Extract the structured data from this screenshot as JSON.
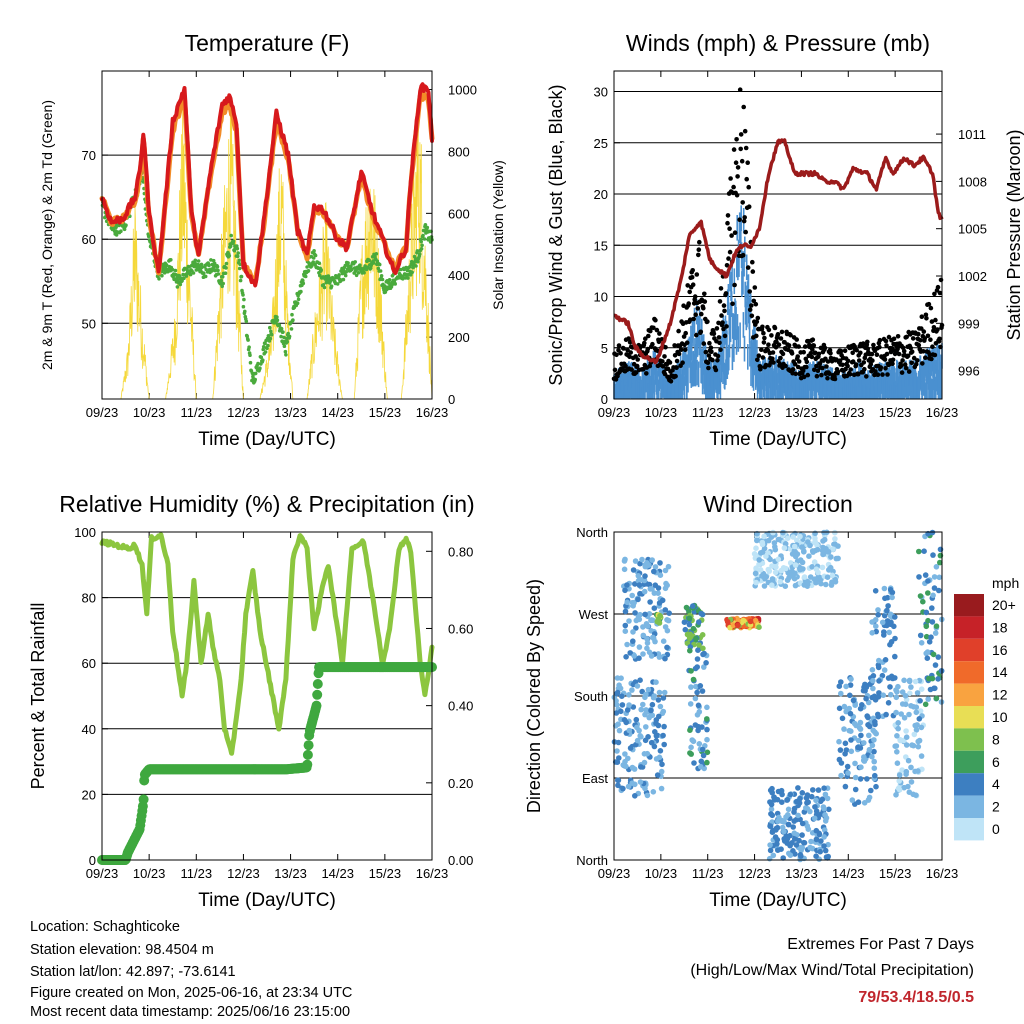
{
  "footer": {
    "location": "Location: Schaghticoke",
    "elevation": "Station elevation: 98.4504 m",
    "latlon": "Station lat/lon: 42.897; -73.6141",
    "created": "Figure created on Mon, 2025-06-16, at 23:34 UTC",
    "latest": "Most recent data timestamp: 2025/06/16 23:15:00"
  },
  "extremes": {
    "title": "Extremes For Past 7 Days",
    "subtitle": "(High/Low/Max Wind/Total Precipitation)",
    "values": "79/53.4/18.5/0.5"
  },
  "colors": {
    "temp_2m": "#d7191c",
    "temp_9m": "#f28c28",
    "dewpoint": "#4aaa3c",
    "solar": "#f5d83a",
    "gust": "#000000",
    "wind": "#4a90d0",
    "pressure": "#9b1b1b",
    "rh": "#8cc63f",
    "precip": "#3fa83f"
  },
  "chart_data": [
    {
      "type": "line",
      "title": "Temperature (F)",
      "xlabel": "Time (Day/UTC)",
      "ylabel": "2m & 9m T (Red, Orange) & 2m Td (Green)",
      "ylabel_right": "Solar Insolation (Yellow)",
      "x_ticks": [
        "09/23",
        "10/23",
        "11/23",
        "12/23",
        "13/23",
        "14/23",
        "15/23",
        "16/23"
      ],
      "xlim": [
        0,
        7
      ],
      "ylim": [
        41,
        80
      ],
      "yticks": [
        50,
        60,
        70
      ],
      "ylim_right": [
        0,
        1060
      ],
      "yticks_right": [
        0,
        200,
        400,
        600,
        800,
        1000
      ],
      "grid_y": true,
      "series": [
        {
          "key": "t2m",
          "x": [
            0,
            0.2,
            0.45,
            0.7,
            0.8,
            0.88,
            1.0,
            1.2,
            1.5,
            1.75,
            1.9,
            2.05,
            2.3,
            2.55,
            2.7,
            2.85,
            3.0,
            3.25,
            3.45,
            3.7,
            3.95,
            4.15,
            4.35,
            4.5,
            4.7,
            5.0,
            5.2,
            5.5,
            5.75,
            5.95,
            6.2,
            6.45,
            6.55,
            6.75,
            6.92,
            7.0
          ],
          "y": [
            65,
            62,
            62.5,
            65,
            68,
            73,
            63,
            56,
            74,
            78,
            63,
            58,
            68,
            76,
            77,
            74,
            57,
            54.5,
            63,
            75,
            70,
            61,
            58,
            64,
            63.5,
            60,
            59,
            68,
            63,
            60,
            56,
            59,
            67,
            78,
            78,
            72
          ]
        },
        {
          "key": "t9m",
          "x": [
            0,
            0.2,
            0.45,
            0.7,
            0.8,
            0.88,
            1.0,
            1.2,
            1.5,
            1.75,
            1.9,
            2.05,
            2.3,
            2.55,
            2.7,
            2.85,
            3.0,
            3.25,
            3.45,
            3.7,
            3.95,
            4.15,
            4.35,
            4.5,
            4.7,
            5.0,
            5.2,
            5.5,
            5.75,
            5.95,
            6.2,
            6.45,
            6.55,
            6.75,
            6.92,
            7.0
          ],
          "y": [
            65,
            62,
            62.5,
            64.5,
            67.5,
            72,
            62.5,
            56,
            73,
            77,
            62.5,
            58,
            67.5,
            75,
            76,
            73,
            57,
            54.8,
            62.5,
            74,
            69.5,
            61,
            58,
            63.5,
            63,
            60,
            59,
            67.5,
            62.5,
            60,
            56.5,
            59,
            66.5,
            77,
            77,
            72
          ]
        },
        {
          "key": "td",
          "x": [
            0,
            0.25,
            0.5,
            0.75,
            0.85,
            1.0,
            1.2,
            1.45,
            1.6,
            1.8,
            2.0,
            2.15,
            2.35,
            2.55,
            2.75,
            2.9,
            3.05,
            3.2,
            3.45,
            3.7,
            3.9,
            4.1,
            4.3,
            4.5,
            4.7,
            5.0,
            5.25,
            5.5,
            5.8,
            6.0,
            6.3,
            6.5,
            6.7,
            6.85,
            7.0
          ],
          "y": [
            64,
            61,
            62,
            66,
            68,
            60,
            56,
            57,
            55,
            56,
            57,
            56,
            57,
            55,
            60,
            58,
            50,
            43,
            47,
            51,
            47,
            52,
            56,
            58,
            55,
            55,
            57,
            56,
            58,
            54,
            56,
            56,
            58,
            61,
            60
          ]
        },
        {
          "key": "solar",
          "x": [
            0.4,
            0.55,
            0.7,
            0.85,
            1.0,
            1.35,
            1.55,
            1.72,
            1.85,
            2.0,
            2.35,
            2.5,
            2.72,
            2.85,
            3.0,
            3.35,
            3.6,
            3.8,
            3.92,
            4.05,
            4.35,
            4.55,
            4.75,
            4.9,
            5.1,
            5.35,
            5.5,
            5.7,
            5.9,
            6.05,
            6.35,
            6.55,
            6.72,
            6.88,
            7.0
          ],
          "y": [
            0,
            180,
            680,
            300,
            0,
            0,
            300,
            1020,
            520,
            0,
            0,
            450,
            1010,
            600,
            0,
            0,
            250,
            900,
            400,
            0,
            0,
            350,
            650,
            300,
            0,
            0,
            500,
            880,
            450,
            0,
            0,
            600,
            1050,
            500,
            0
          ]
        }
      ]
    },
    {
      "type": "line",
      "title": "Winds (mph) & Pressure (mb)",
      "xlabel": "Time (Day/UTC)",
      "ylabel": "Sonic/Prop Wind & Gust (Blue, Black)",
      "ylabel_right": "Station Pressure (Maroon)",
      "x_ticks": [
        "09/23",
        "10/23",
        "11/23",
        "12/23",
        "13/23",
        "14/23",
        "15/23",
        "16/23"
      ],
      "xlim": [
        0,
        7
      ],
      "ylim": [
        0,
        32
      ],
      "yticks": [
        0,
        5,
        10,
        15,
        20,
        25,
        30
      ],
      "ylim_right": [
        994.2,
        1015.0
      ],
      "yticks_right": [
        996,
        999,
        1002,
        1005,
        1008,
        1011
      ],
      "grid_y": true,
      "series": [
        {
          "key": "wind",
          "x": [
            0,
            0.3,
            0.6,
            0.9,
            1.2,
            1.5,
            1.8,
            2.0,
            2.2,
            2.4,
            2.6,
            2.75,
            2.9,
            3.1,
            3.4,
            3.7,
            4.0,
            4.3,
            4.6,
            4.9,
            5.2,
            5.5,
            5.8,
            6.1,
            6.4,
            6.7,
            7.0
          ],
          "y": [
            2,
            3,
            2.5,
            4,
            1.5,
            4,
            8,
            3,
            3,
            8,
            14,
            16,
            9,
            3,
            3.5,
            3,
            2.5,
            3,
            2.5,
            2,
            3,
            2.5,
            3,
            3,
            3,
            4,
            4.5
          ]
        },
        {
          "key": "gust",
          "x": [
            0,
            0.3,
            0.6,
            0.9,
            1.2,
            1.5,
            1.8,
            2.0,
            2.2,
            2.4,
            2.6,
            2.75,
            2.9,
            3.1,
            3.4,
            3.7,
            4.0,
            4.3,
            4.6,
            4.9,
            5.2,
            5.5,
            5.8,
            6.1,
            6.4,
            6.7,
            7.0
          ],
          "y": [
            4,
            5,
            4.5,
            7,
            3,
            8,
            14,
            6,
            6,
            14,
            24,
            28,
            16,
            6,
            6,
            5.5,
            4.5,
            5,
            4,
            4,
            5,
            4.5,
            5,
            5.5,
            5.5,
            8,
            10
          ]
        },
        {
          "key": "pressure",
          "x": [
            0,
            0.3,
            0.45,
            0.6,
            0.9,
            1.2,
            1.45,
            1.6,
            1.85,
            2.05,
            2.2,
            2.4,
            2.6,
            2.75,
            2.9,
            3.1,
            3.3,
            3.5,
            3.65,
            3.85,
            4.0,
            4.3,
            4.5,
            4.7,
            4.9,
            5.1,
            5.4,
            5.6,
            5.8,
            5.95,
            6.2,
            6.4,
            6.6,
            6.8,
            6.92,
            7.0
          ],
          "y": [
            999.5,
            999,
            997.5,
            997,
            996.5,
            999,
            1002,
            1004.5,
            1005.5,
            1003,
            1002.5,
            1002,
            1003.5,
            1004,
            1003.8,
            1005,
            1008.5,
            1010.5,
            1010.5,
            1008.5,
            1008.5,
            1008.5,
            1008,
            1008,
            1007.5,
            1008.8,
            1008.5,
            1007.5,
            1009.5,
            1008.5,
            1009.5,
            1009,
            1009.5,
            1008.5,
            1006,
            1005.5
          ]
        }
      ]
    },
    {
      "type": "line",
      "title": "Relative Humidity (%) & Precipitation (in)",
      "xlabel": "Time (Day/UTC)",
      "ylabel": "Percent & Total Rainfall",
      "x_ticks": [
        "09/23",
        "10/23",
        "11/23",
        "12/23",
        "13/23",
        "14/23",
        "15/23",
        "16/23"
      ],
      "xlim": [
        0,
        7
      ],
      "ylim": [
        0,
        100
      ],
      "yticks": [
        0,
        20,
        40,
        60,
        80,
        100
      ],
      "ylim_right": [
        0,
        0.85
      ],
      "yticks_right": [
        0.0,
        0.2,
        0.4,
        0.6,
        0.8
      ],
      "grid_y": true,
      "series": [
        {
          "key": "rh",
          "x": [
            0,
            0.3,
            0.55,
            0.7,
            0.85,
            0.95,
            1.05,
            1.25,
            1.4,
            1.5,
            1.7,
            1.8,
            1.95,
            2.1,
            2.25,
            2.35,
            2.5,
            2.6,
            2.75,
            2.95,
            3.05,
            3.2,
            3.35,
            3.55,
            3.75,
            3.9,
            4.05,
            4.2,
            4.35,
            4.5,
            4.7,
            4.8,
            4.95,
            5.1,
            5.3,
            5.55,
            5.8,
            5.95,
            6.1,
            6.3,
            6.45,
            6.55,
            6.75,
            6.85,
            6.95,
            7.0
          ],
          "y": [
            97,
            96,
            95,
            96,
            90,
            75,
            98,
            99,
            90,
            70,
            50,
            60,
            85,
            60,
            75,
            65,
            55,
            40,
            32,
            55,
            75,
            88,
            70,
            55,
            40,
            55,
            92,
            99,
            95,
            70,
            85,
            90,
            75,
            60,
            95,
            97,
            75,
            60,
            70,
            95,
            98,
            94,
            60,
            50,
            60,
            65
          ]
        },
        {
          "key": "precip",
          "x": [
            0,
            0.5,
            0.55,
            0.8,
            0.88,
            0.9,
            1.0,
            1.5,
            2.0,
            3.0,
            3.5,
            3.9,
            4.35,
            4.4,
            4.55,
            4.6,
            5.0,
            6.0,
            7.0
          ],
          "y": [
            0,
            0,
            0.02,
            0.08,
            0.15,
            0.22,
            0.235,
            0.235,
            0.235,
            0.235,
            0.235,
            0.235,
            0.24,
            0.33,
            0.4,
            0.5,
            0.5,
            0.5,
            0.5
          ]
        }
      ]
    },
    {
      "type": "scatter",
      "title": "Wind Direction",
      "xlabel": "Time (Day/UTC)",
      "ylabel": "Direction (Colored By Speed)",
      "x_ticks": [
        "09/23",
        "10/23",
        "11/23",
        "12/23",
        "13/23",
        "14/23",
        "15/23",
        "16/23"
      ],
      "xlim": [
        0,
        7
      ],
      "ylim": [
        0,
        360
      ],
      "ytick_values": [
        0,
        90,
        180,
        270,
        360
      ],
      "ytick_labels": [
        "North",
        "East",
        "South",
        "West",
        "North"
      ],
      "grid_y": true,
      "colorbar": {
        "title": "mph",
        "labels": [
          "20+",
          "18",
          "16",
          "14",
          "12",
          "10",
          "8",
          "6",
          "4",
          "2",
          "0"
        ],
        "colors": [
          "#991b1e",
          "#c62228",
          "#e0402a",
          "#f06a2a",
          "#f9a340",
          "#e8de55",
          "#7ec04e",
          "#3d9e5c",
          "#3d7fc1",
          "#7bb6e2",
          "#bfe4f7"
        ]
      },
      "clusters": [
        {
          "x": [
            0,
            1.1
          ],
          "dir": [
            70,
            200
          ],
          "speed": [
            1,
            5
          ]
        },
        {
          "x": [
            0.2,
            1.2
          ],
          "dir": [
            220,
            330
          ],
          "speed": [
            1,
            4
          ]
        },
        {
          "x": [
            0.9,
            1.0
          ],
          "dir": [
            260,
            270
          ],
          "speed": [
            6,
            10
          ]
        },
        {
          "x": [
            1.5,
            1.9
          ],
          "dir": [
            230,
            280
          ],
          "speed": [
            3,
            9
          ]
        },
        {
          "x": [
            1.6,
            2.0
          ],
          "dir": [
            100,
            230
          ],
          "speed": [
            2,
            6
          ]
        },
        {
          "x": [
            2.4,
            3.1
          ],
          "dir": [
            255,
            265
          ],
          "speed": [
            8,
            18
          ]
        },
        {
          "x": [
            3.0,
            4.8
          ],
          "dir": [
            300,
            360
          ],
          "speed": [
            0,
            3
          ]
        },
        {
          "x": [
            3.3,
            4.6
          ],
          "dir": [
            0,
            80
          ],
          "speed": [
            2,
            5
          ]
        },
        {
          "x": [
            4.8,
            5.6
          ],
          "dir": [
            60,
            200
          ],
          "speed": [
            1,
            5
          ]
        },
        {
          "x": [
            5.5,
            6.0
          ],
          "dir": [
            150,
            300
          ],
          "speed": [
            2,
            5
          ]
        },
        {
          "x": [
            6.0,
            6.6
          ],
          "dir": [
            70,
            200
          ],
          "speed": [
            0,
            3
          ]
        },
        {
          "x": [
            6.5,
            7.0
          ],
          "dir": [
            150,
            360
          ],
          "speed": [
            2,
            6
          ]
        }
      ]
    }
  ]
}
